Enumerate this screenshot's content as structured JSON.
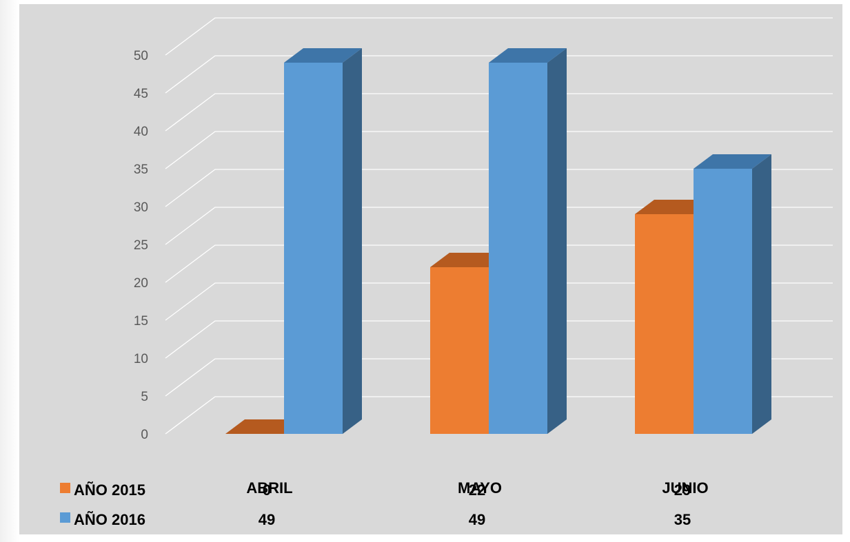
{
  "chart_data": {
    "type": "bar",
    "categories": [
      "ABRIL",
      "MAYO",
      "JUNIO"
    ],
    "series": [
      {
        "name": "AÑO  2015",
        "values": [
          0,
          22,
          29
        ],
        "color": "#ed7d31",
        "top_color": "#b55a1f",
        "side_color": "#ae5a21"
      },
      {
        "name": "AÑO 2016",
        "values": [
          49,
          49,
          35
        ],
        "color": "#5b9bd5",
        "top_color": "#3e75a8",
        "side_color": "#376186"
      }
    ],
    "ylim": [
      0,
      50
    ],
    "yticks": [
      0,
      5,
      10,
      15,
      20,
      25,
      30,
      35,
      40,
      45,
      50
    ],
    "grid": true,
    "data_table": true,
    "legend": "in data table",
    "background_color": "#d9d9d9",
    "grid_color": "#ffffff"
  }
}
